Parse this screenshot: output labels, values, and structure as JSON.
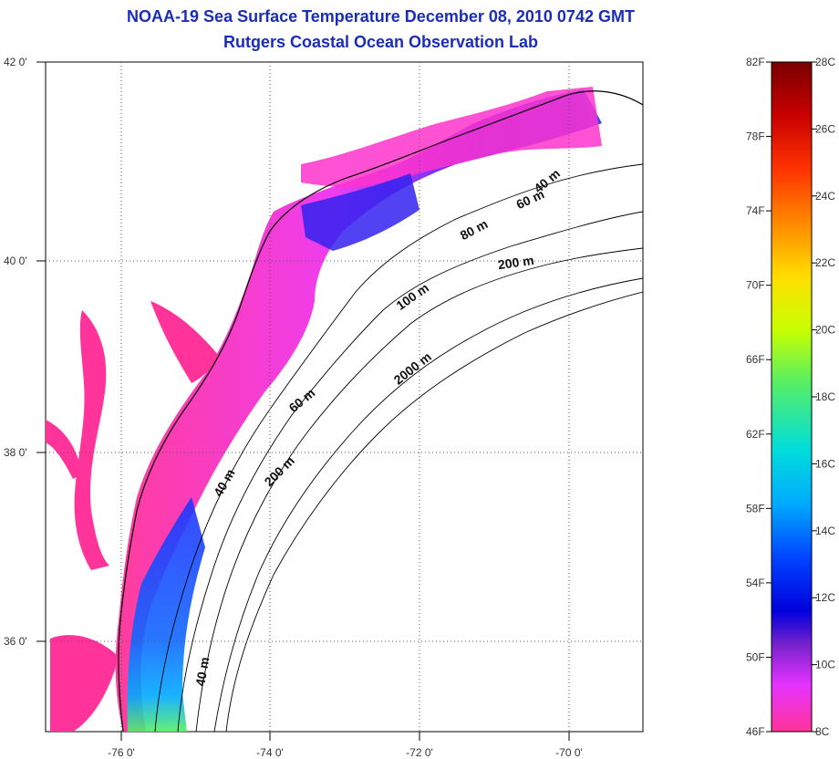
{
  "header": {
    "title": "NOAA-19 Sea Surface Temperature December 08, 2010 0742 GMT",
    "subtitle": "Rutgers Coastal Ocean Observation Lab"
  },
  "map": {
    "lon_ticks": [
      "-76 0'",
      "-74 0'",
      "-72 0'",
      "-70 0'"
    ],
    "lat_ticks": [
      "42 0'",
      "40 0'",
      "38 0'",
      "36 0'"
    ],
    "grid": true,
    "contour_labels": [
      "40 m",
      "60 m",
      "80 m",
      "200 m",
      "100 m",
      "2000 m",
      "60 m",
      "200 m",
      "40 m",
      "40 m"
    ],
    "colors": {
      "land": "#ffffff",
      "water_cold": "#ff3399",
      "water_cool": "#2233ff",
      "coast": "#000000"
    }
  },
  "colorbar": {
    "fahrenheit": [
      "82F",
      "78F",
      "74F",
      "70F",
      "66F",
      "62F",
      "58F",
      "54F",
      "50F",
      "46F"
    ],
    "celsius": [
      "28C",
      "26C",
      "24C",
      "22C",
      "20C",
      "18C",
      "16C",
      "14C",
      "12C",
      "10C",
      "8C"
    ],
    "gradient": [
      "#7a0000",
      "#c80000",
      "#ff3300",
      "#ff8800",
      "#ffdd00",
      "#c8ff00",
      "#55ee66",
      "#00dddd",
      "#00aaff",
      "#0044ff",
      "#0000dd",
      "#7733cc",
      "#cc33ff",
      "#ff3399"
    ]
  }
}
